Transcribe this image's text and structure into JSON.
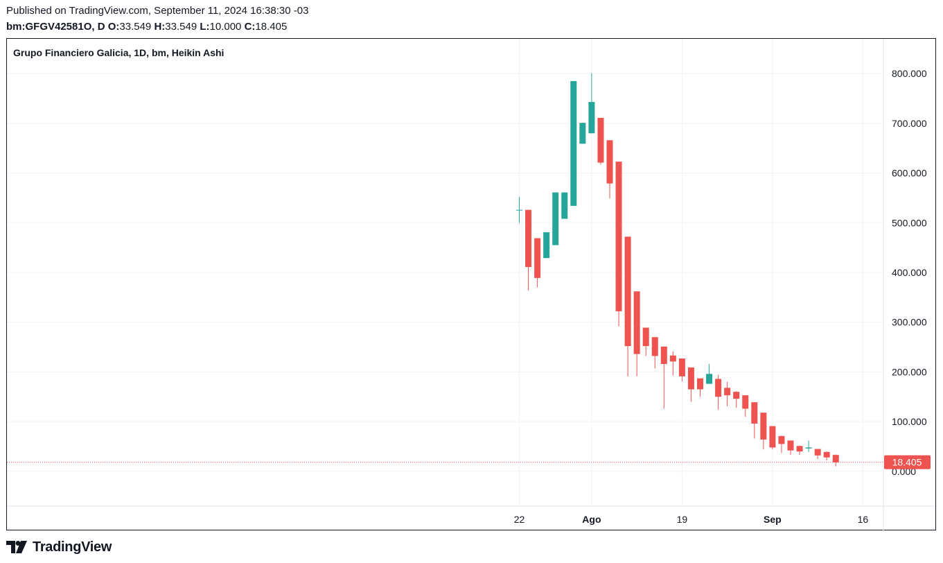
{
  "header": {
    "published": "Published on TradingView.com, September 11, 2024 16:38:30 -03",
    "symbol": "bm:GFGV42581O, D",
    "o_label": "O:",
    "o_value": "33.549",
    "h_label": "H:",
    "h_value": "33.549",
    "l_label": "L:",
    "l_value": "10.000",
    "c_label": "C:",
    "c_value": "18.405"
  },
  "chart_title": "Grupo Financiero Galicia, 1D, bm, Heikin Ashi",
  "footer": {
    "brand": "TradingView",
    "logo_icon": "tradingview-logo-icon"
  },
  "colors": {
    "up": "#26a69a",
    "down": "#ef5350",
    "grid": "#f0f3fa",
    "axis_text": "#131722",
    "price_line": "#ef5350"
  },
  "chart_data": {
    "type": "candlestick",
    "style": "Heikin Ashi",
    "interval": "1D",
    "ylim": [
      -70,
      870
    ],
    "y_ticks": [
      800,
      700,
      600,
      500,
      400,
      300,
      200,
      100,
      0
    ],
    "y_tick_labels": [
      "800.000",
      "700.000",
      "600.000",
      "500.000",
      "400.000",
      "300.000",
      "200.000",
      "100.000",
      "0.000"
    ],
    "x_ticks": [
      {
        "label": "22",
        "index": 0,
        "bold": false
      },
      {
        "label": "Ago",
        "index": 8,
        "bold": true
      },
      {
        "label": "19",
        "index": 18,
        "bold": false
      },
      {
        "label": "Sep",
        "index": 28,
        "bold": true
      },
      {
        "label": "16",
        "index": 38,
        "bold": false
      }
    ],
    "last_price": 18.405,
    "last_price_label": "18.405",
    "candles": [
      {
        "o": 526,
        "h": 552,
        "l": 500,
        "c": 526
      },
      {
        "o": 526,
        "h": 526,
        "l": 364,
        "c": 411
      },
      {
        "o": 469,
        "h": 469,
        "l": 370,
        "c": 389
      },
      {
        "o": 429,
        "h": 481,
        "l": 429,
        "c": 481
      },
      {
        "o": 455,
        "h": 561,
        "l": 455,
        "c": 561
      },
      {
        "o": 508,
        "h": 561,
        "l": 508,
        "c": 561
      },
      {
        "o": 534,
        "h": 785,
        "l": 534,
        "c": 785
      },
      {
        "o": 659,
        "h": 701,
        "l": 659,
        "c": 701
      },
      {
        "o": 680,
        "h": 801,
        "l": 680,
        "c": 743
      },
      {
        "o": 711,
        "h": 711,
        "l": 617,
        "c": 621
      },
      {
        "o": 666,
        "h": 666,
        "l": 549,
        "c": 579
      },
      {
        "o": 623,
        "h": 623,
        "l": 292,
        "c": 322
      },
      {
        "o": 472,
        "h": 472,
        "l": 191,
        "c": 252
      },
      {
        "o": 362,
        "h": 362,
        "l": 191,
        "c": 236
      },
      {
        "o": 289,
        "h": 289,
        "l": 232,
        "c": 252
      },
      {
        "o": 270,
        "h": 270,
        "l": 207,
        "c": 232
      },
      {
        "o": 251,
        "h": 251,
        "l": 126,
        "c": 216
      },
      {
        "o": 233,
        "h": 241,
        "l": 193,
        "c": 221
      },
      {
        "o": 227,
        "h": 227,
        "l": 181,
        "c": 191
      },
      {
        "o": 209,
        "h": 209,
        "l": 140,
        "c": 165
      },
      {
        "o": 187,
        "h": 187,
        "l": 150,
        "c": 165
      },
      {
        "o": 176,
        "h": 216,
        "l": 176,
        "c": 196
      },
      {
        "o": 186,
        "h": 194,
        "l": 124,
        "c": 150
      },
      {
        "o": 168,
        "h": 180,
        "l": 131,
        "c": 153
      },
      {
        "o": 160,
        "h": 161,
        "l": 128,
        "c": 146
      },
      {
        "o": 153,
        "h": 153,
        "l": 110,
        "c": 126
      },
      {
        "o": 139,
        "h": 139,
        "l": 66,
        "c": 96
      },
      {
        "o": 118,
        "h": 118,
        "l": 44,
        "c": 64
      },
      {
        "o": 91,
        "h": 91,
        "l": 44,
        "c": 48
      },
      {
        "o": 71,
        "h": 72,
        "l": 37,
        "c": 55
      },
      {
        "o": 62,
        "h": 62,
        "l": 33,
        "c": 42
      },
      {
        "o": 51,
        "h": 52,
        "l": 33,
        "c": 40
      },
      {
        "o": 46,
        "h": 62,
        "l": 39,
        "c": 48
      },
      {
        "o": 45,
        "h": 45,
        "l": 25,
        "c": 32
      },
      {
        "o": 39,
        "h": 40,
        "l": 22,
        "c": 28
      },
      {
        "o": 33,
        "h": 34,
        "l": 10,
        "c": 18
      }
    ]
  }
}
